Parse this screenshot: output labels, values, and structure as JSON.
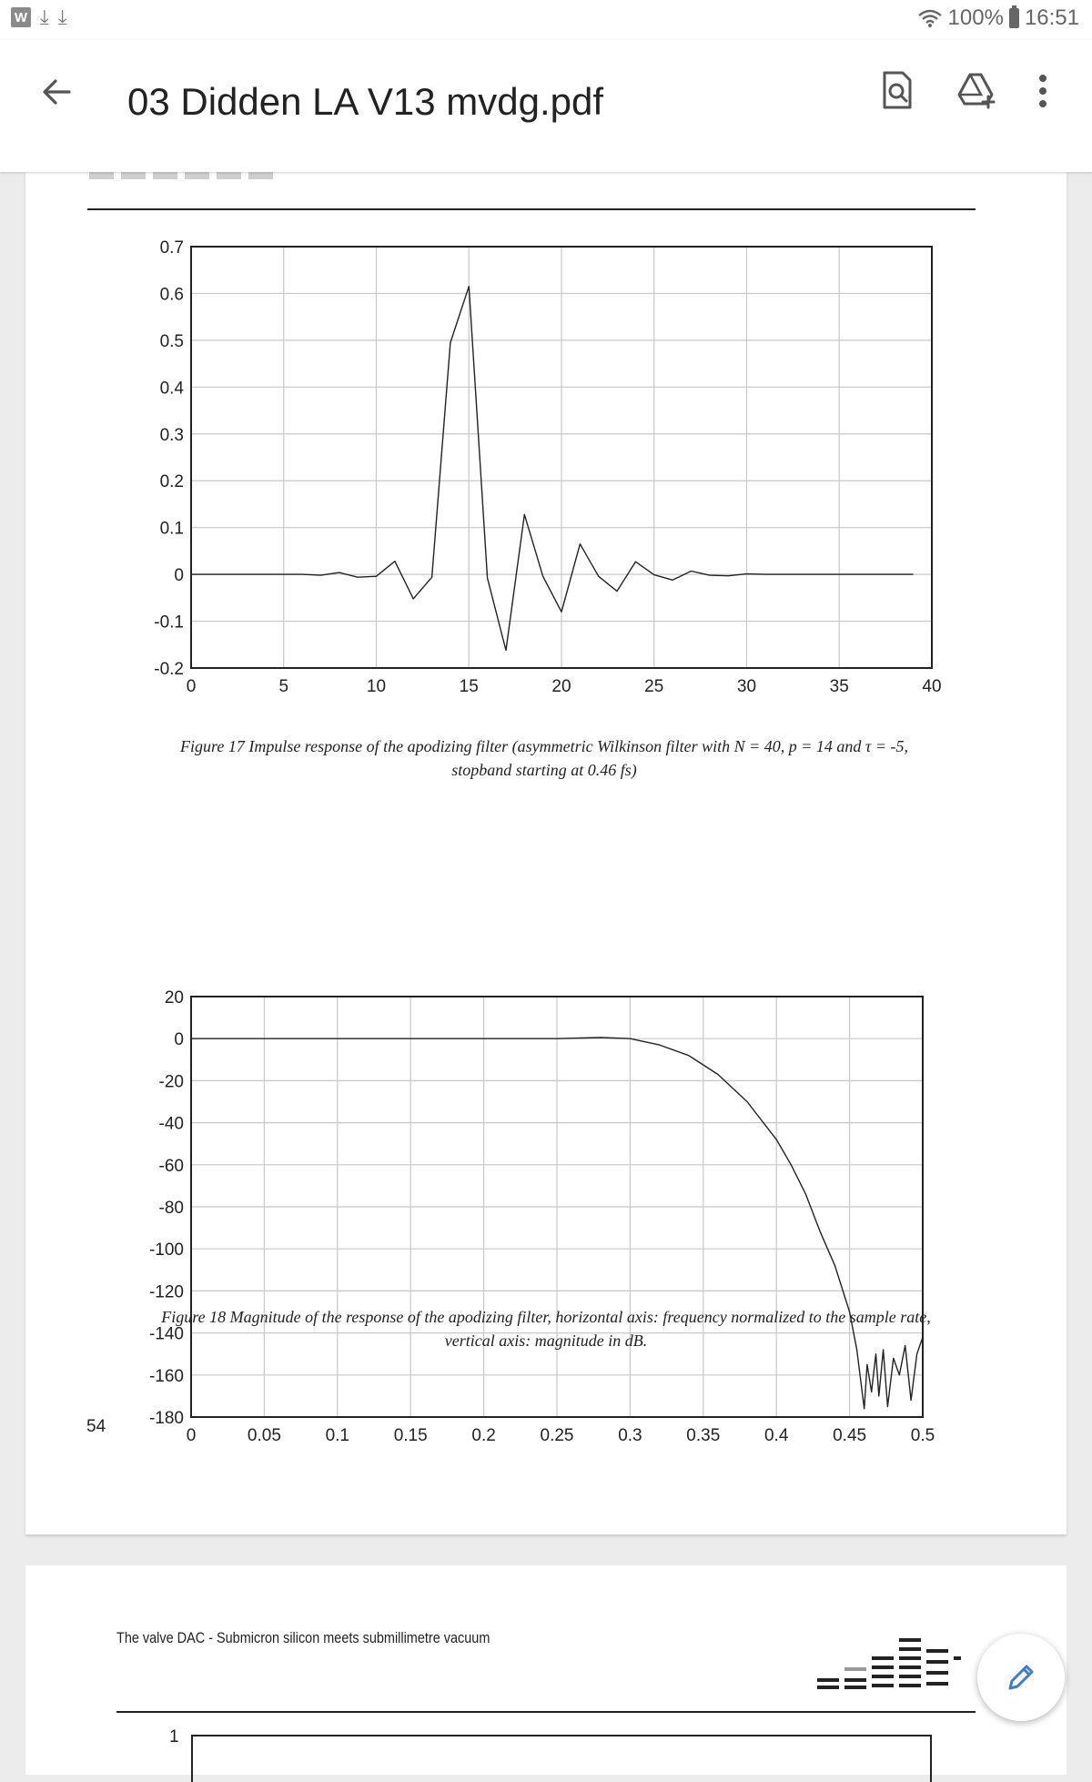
{
  "status_bar": {
    "app_badge": "W",
    "battery": "100%",
    "time": "16:51"
  },
  "app_bar": {
    "title": "03 Didden LA V13 mvdg.pdf"
  },
  "icons": {
    "back": "arrow-back-icon",
    "find": "find-in-page-icon",
    "drive": "add-to-drive-icon",
    "more": "more-vert-icon",
    "edit": "pencil-icon"
  },
  "page1": {
    "page_number": "54",
    "figure17_caption_line1": "Figure 17 Impulse response of the apodizing filter (asymmetric Wilkinson filter with N = 40, p = 14 and τ = -5,",
    "figure17_caption_line2": "stopband starting at 0.46 fs)",
    "figure18_caption_line1": "Figure 18 Magnitude of the response of the apodizing filter, horizontal axis: frequency normalized to the sample rate,",
    "figure18_caption_line2": "vertical axis: magnitude in dB."
  },
  "page2": {
    "running_header": "The valve DAC - Submicron silicon meets submillimetre vacuum",
    "axis_top_label": "1"
  },
  "chart_data": [
    {
      "type": "line",
      "x": [
        0,
        1,
        2,
        3,
        4,
        5,
        6,
        7,
        8,
        9,
        10,
        11,
        12,
        13,
        14,
        15,
        16,
        17,
        18,
        19,
        20,
        21,
        22,
        23,
        24,
        25,
        26,
        27,
        28,
        29,
        30,
        31,
        32,
        33,
        34,
        35,
        36,
        37,
        38,
        39
      ],
      "series": [
        {
          "values": [
            0,
            0,
            0,
            0,
            0,
            0,
            0,
            -0.002,
            0.004,
            -0.006,
            -0.004,
            0.028,
            -0.052,
            -0.006,
            0.495,
            0.615,
            -0.008,
            -0.162,
            0.128,
            -0.004,
            -0.08,
            0.065,
            -0.004,
            -0.036,
            0.027,
            -0.001,
            -0.012,
            0.007,
            -0.002,
            -0.003,
            0.001,
            0,
            0,
            0,
            0,
            0,
            0,
            0,
            0,
            0
          ]
        }
      ],
      "xlim": [
        0,
        40
      ],
      "ylim": [
        -0.2,
        0.7
      ],
      "xticks": [
        0,
        5,
        10,
        15,
        20,
        25,
        30,
        35,
        40
      ],
      "yticks": [
        0.7,
        0.6,
        0.5,
        0.4,
        0.3,
        0.2,
        0.1,
        0,
        -0.1,
        -0.2
      ],
      "grid": true
    },
    {
      "type": "line",
      "x": [
        0,
        0.25,
        0.28,
        0.3,
        0.32,
        0.34,
        0.36,
        0.38,
        0.4,
        0.41,
        0.42,
        0.43,
        0.44,
        0.45,
        0.455,
        0.46,
        0.462,
        0.465,
        0.468,
        0.47,
        0.473,
        0.476,
        0.48,
        0.484,
        0.488,
        0.492,
        0.496,
        0.5
      ],
      "series": [
        {
          "values": [
            0,
            0,
            0.5,
            0,
            -3,
            -8,
            -17,
            -30,
            -48,
            -60,
            -74,
            -92,
            -108,
            -130,
            -148,
            -176,
            -155,
            -168,
            -150,
            -170,
            -148,
            -175,
            -152,
            -160,
            -146,
            -172,
            -150,
            -142
          ]
        }
      ],
      "xlim": [
        0,
        0.5
      ],
      "ylim": [
        -180,
        20
      ],
      "xticks": [
        0,
        0.05,
        0.1,
        0.15,
        0.2,
        0.25,
        0.3,
        0.35,
        0.4,
        0.45,
        0.5
      ],
      "yticks": [
        20,
        0,
        -20,
        -40,
        -60,
        -80,
        -100,
        -120,
        -140,
        -160,
        -180
      ],
      "grid": true
    }
  ]
}
